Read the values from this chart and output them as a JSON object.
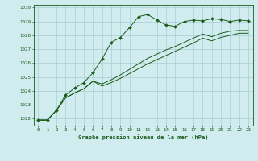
{
  "xlabel": "Graphe pression niveau de la mer (hPa)",
  "x": [
    0,
    1,
    2,
    3,
    4,
    5,
    6,
    7,
    8,
    9,
    10,
    11,
    12,
    13,
    14,
    15,
    16,
    17,
    18,
    19,
    20,
    21,
    22,
    23
  ],
  "series1": [
    1021.9,
    1021.9,
    1022.6,
    1023.7,
    1024.2,
    1024.6,
    1025.3,
    1026.3,
    1027.5,
    1027.85,
    1028.55,
    1029.35,
    1029.5,
    1029.1,
    1028.75,
    1028.65,
    1029.0,
    1029.1,
    1029.05,
    1029.2,
    1029.15,
    1029.0,
    1029.1,
    1029.05
  ],
  "series2": [
    1021.9,
    1021.9,
    1022.6,
    1023.5,
    1023.85,
    1024.15,
    1024.7,
    1024.5,
    1024.8,
    1025.15,
    1025.55,
    1025.95,
    1026.35,
    1026.65,
    1026.95,
    1027.2,
    1027.5,
    1027.8,
    1028.1,
    1027.9,
    1028.15,
    1028.3,
    1028.35,
    1028.35
  ],
  "series3": [
    1021.9,
    1021.9,
    1022.6,
    1023.5,
    1023.85,
    1024.15,
    1024.7,
    1024.35,
    1024.6,
    1024.9,
    1025.25,
    1025.6,
    1025.95,
    1026.25,
    1026.55,
    1026.85,
    1027.15,
    1027.45,
    1027.8,
    1027.6,
    1027.85,
    1028.0,
    1028.15,
    1028.15
  ],
  "line_color": "#1a5c1a",
  "bg_color": "#d0ecee",
  "grid_color": "#aacdd2",
  "text_color": "#1a5c1a",
  "ylim": [
    1021.5,
    1030.2
  ],
  "yticks": [
    1022,
    1023,
    1024,
    1025,
    1026,
    1027,
    1028,
    1029,
    1030
  ],
  "marker": "D",
  "marker_size": 2.0,
  "lw": 0.7
}
